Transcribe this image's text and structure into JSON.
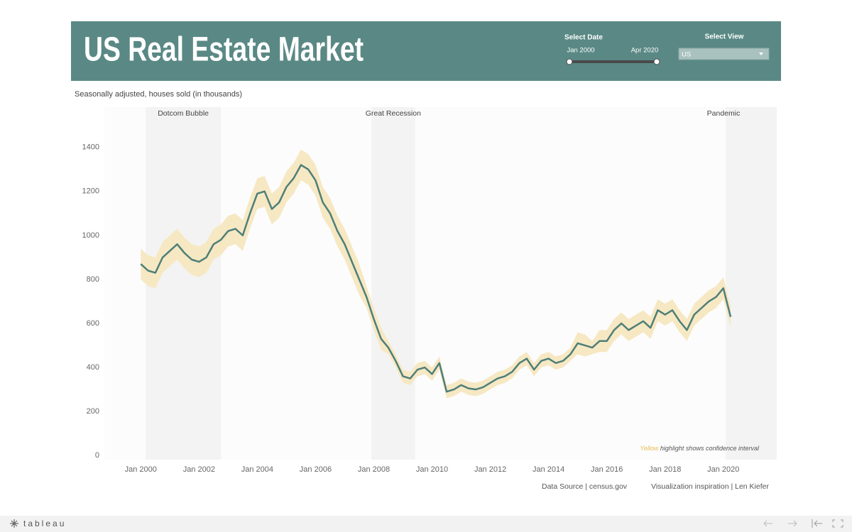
{
  "header": {
    "title": "US Real Estate Market"
  },
  "controls": {
    "date_label": "Select Date",
    "date_range": [
      "Jan 2000",
      "Apr 2020"
    ],
    "view_label": "Select View",
    "view_value": "US"
  },
  "chart_data": {
    "type": "line",
    "subtitle": "Seasonally adjusted, houses sold (in thousands)",
    "note": {
      "highlight": "Yellow",
      "text": "highlight shows confidence interval"
    },
    "color": "#4e7f78",
    "band_color": "#f6e8c3",
    "grid": false,
    "x": [
      "2000-01",
      "2000-04",
      "2000-07",
      "2000-10",
      "2001-01",
      "2001-04",
      "2001-07",
      "2001-10",
      "2002-01",
      "2002-04",
      "2002-07",
      "2002-10",
      "2003-01",
      "2003-04",
      "2003-07",
      "2003-10",
      "2004-01",
      "2004-04",
      "2004-07",
      "2004-10",
      "2005-01",
      "2005-04",
      "2005-07",
      "2005-10",
      "2006-01",
      "2006-04",
      "2006-07",
      "2006-10",
      "2007-01",
      "2007-04",
      "2007-07",
      "2007-10",
      "2008-01",
      "2008-04",
      "2008-07",
      "2008-10",
      "2009-01",
      "2009-04",
      "2009-07",
      "2009-10",
      "2010-01",
      "2010-04",
      "2010-07",
      "2010-10",
      "2011-01",
      "2011-04",
      "2011-07",
      "2011-10",
      "2012-01",
      "2012-04",
      "2012-07",
      "2012-10",
      "2013-01",
      "2013-04",
      "2013-07",
      "2013-10",
      "2014-01",
      "2014-04",
      "2014-07",
      "2014-10",
      "2015-01",
      "2015-04",
      "2015-07",
      "2015-10",
      "2016-01",
      "2016-04",
      "2016-07",
      "2016-10",
      "2017-01",
      "2017-04",
      "2017-07",
      "2017-10",
      "2018-01",
      "2018-04",
      "2018-07",
      "2018-10",
      "2019-01",
      "2019-04",
      "2019-07",
      "2019-10",
      "2020-01",
      "2020-04"
    ],
    "values": [
      870,
      840,
      830,
      900,
      930,
      960,
      920,
      890,
      880,
      900,
      960,
      980,
      1020,
      1030,
      1000,
      1100,
      1190,
      1200,
      1120,
      1150,
      1220,
      1260,
      1320,
      1300,
      1250,
      1150,
      1100,
      1020,
      960,
      880,
      800,
      720,
      620,
      530,
      490,
      430,
      360,
      350,
      390,
      400,
      370,
      420,
      290,
      300,
      320,
      305,
      300,
      310,
      330,
      350,
      360,
      380,
      420,
      440,
      390,
      430,
      440,
      420,
      430,
      460,
      510,
      500,
      490,
      520,
      520,
      570,
      600,
      570,
      590,
      610,
      580,
      660,
      640,
      660,
      610,
      570,
      640,
      670,
      700,
      720,
      760,
      630
    ],
    "ci_lower": [
      800,
      770,
      760,
      830,
      860,
      890,
      850,
      820,
      810,
      830,
      890,
      910,
      950,
      960,
      930,
      1030,
      1120,
      1130,
      1050,
      1080,
      1150,
      1190,
      1250,
      1230,
      1180,
      1080,
      1030,
      950,
      890,
      810,
      730,
      670,
      570,
      480,
      460,
      400,
      330,
      320,
      360,
      370,
      340,
      390,
      260,
      270,
      290,
      275,
      270,
      280,
      300,
      320,
      330,
      350,
      390,
      410,
      360,
      400,
      410,
      390,
      400,
      430,
      460,
      450,
      460,
      470,
      470,
      520,
      550,
      520,
      540,
      560,
      530,
      610,
      590,
      610,
      560,
      520,
      590,
      620,
      650,
      670,
      710,
      580
    ],
    "ci_upper": [
      940,
      910,
      900,
      970,
      1000,
      1030,
      990,
      960,
      950,
      970,
      1030,
      1050,
      1090,
      1100,
      1070,
      1170,
      1260,
      1270,
      1190,
      1220,
      1290,
      1330,
      1390,
      1370,
      1320,
      1220,
      1170,
      1090,
      1030,
      950,
      870,
      770,
      670,
      580,
      520,
      460,
      390,
      380,
      420,
      430,
      400,
      450,
      320,
      330,
      350,
      335,
      330,
      340,
      360,
      380,
      390,
      410,
      450,
      470,
      420,
      460,
      470,
      450,
      460,
      490,
      560,
      550,
      520,
      570,
      570,
      620,
      650,
      620,
      640,
      660,
      630,
      710,
      690,
      710,
      660,
      620,
      690,
      720,
      750,
      770,
      810,
      680
    ],
    "periods": [
      {
        "label": "Dotcom Bubble",
        "start": "2000-03",
        "end": "2002-10"
      },
      {
        "label": "Great Recession",
        "start": "2007-12",
        "end": "2009-06"
      },
      {
        "label": "Pandemic",
        "start": "2020-02",
        "end": "2021-11"
      }
    ],
    "xlim": [
      "1998-10",
      "2021-11"
    ],
    "xticks": [
      {
        "value": "2000-01",
        "label": "Jan 2000"
      },
      {
        "value": "2002-01",
        "label": "Jan 2002"
      },
      {
        "value": "2004-01",
        "label": "Jan 2004"
      },
      {
        "value": "2006-01",
        "label": "Jan 2006"
      },
      {
        "value": "2008-01",
        "label": "Jan 2008"
      },
      {
        "value": "2010-01",
        "label": "Jan 2010"
      },
      {
        "value": "2012-01",
        "label": "Jan 2012"
      },
      {
        "value": "2014-01",
        "label": "Jan 2014"
      },
      {
        "value": "2016-01",
        "label": "Jan 2016"
      },
      {
        "value": "2018-01",
        "label": "Jan 2018"
      },
      {
        "value": "2020-01",
        "label": "Jan 2020"
      }
    ],
    "ylim": [
      -19,
      1583
    ],
    "yticks": [
      0,
      200,
      400,
      600,
      800,
      1000,
      1200,
      1400
    ]
  },
  "footer": {
    "source": "Data Source | census.gov",
    "inspiration": "Visualization inspiration |  Len Kiefer"
  },
  "toolbar": {
    "brand": "tableau"
  }
}
